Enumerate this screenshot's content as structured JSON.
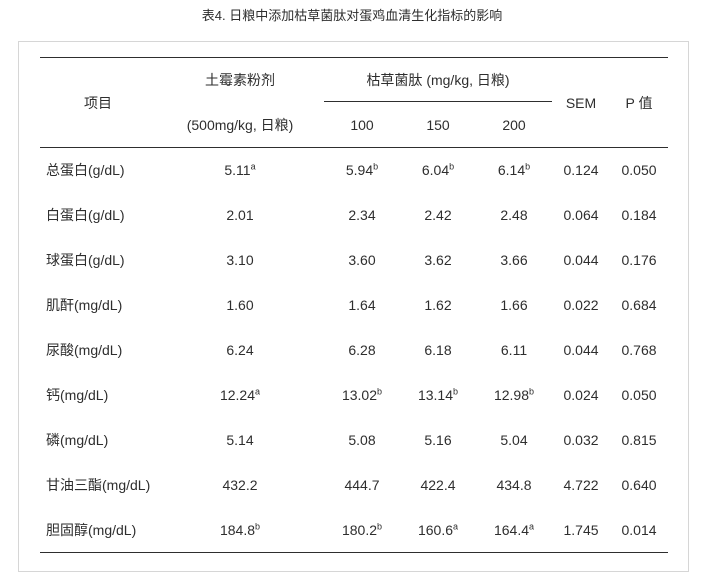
{
  "title": "表4. 日粮中添加枯草菌肽对蛋鸡血清生化指标的影响",
  "colors": {
    "text": "#2e2e2e",
    "rule": "#2e2e2e",
    "panel_border": "#d6d6d6",
    "background": "#ffffff"
  },
  "chart_data": {
    "type": "table",
    "title": "表4. 日粮中添加枯草菌肽对蛋鸡血清生化指标的影响",
    "header": {
      "item_col": "项目",
      "oxytetracycline_line1": "土霉素粉剂",
      "oxytetracycline_line2": "(500mg/kg, 日粮)",
      "bacitracin_group": "枯草菌肽 (mg/kg, 日粮)",
      "dose_cols": [
        "100",
        "150",
        "200"
      ],
      "sem_col": "SEM",
      "p_col": "P 值"
    },
    "rows": [
      {
        "item": "总蛋白(g/dL)",
        "cells": [
          {
            "v": "5.11",
            "s": "a"
          },
          {
            "v": "5.94",
            "s": "b"
          },
          {
            "v": "6.04",
            "s": "b"
          },
          {
            "v": "6.14",
            "s": "b"
          },
          {
            "v": "0.124",
            "s": ""
          },
          {
            "v": "0.050",
            "s": ""
          }
        ]
      },
      {
        "item": "白蛋白(g/dL)",
        "cells": [
          {
            "v": "2.01",
            "s": ""
          },
          {
            "v": "2.34",
            "s": ""
          },
          {
            "v": "2.42",
            "s": ""
          },
          {
            "v": "2.48",
            "s": ""
          },
          {
            "v": "0.064",
            "s": ""
          },
          {
            "v": "0.184",
            "s": ""
          }
        ]
      },
      {
        "item": "球蛋白(g/dL)",
        "cells": [
          {
            "v": "3.10",
            "s": ""
          },
          {
            "v": "3.60",
            "s": ""
          },
          {
            "v": "3.62",
            "s": ""
          },
          {
            "v": "3.66",
            "s": ""
          },
          {
            "v": "0.044",
            "s": ""
          },
          {
            "v": "0.176",
            "s": ""
          }
        ]
      },
      {
        "item": "肌酐(mg/dL)",
        "cells": [
          {
            "v": "1.60",
            "s": ""
          },
          {
            "v": "1.64",
            "s": ""
          },
          {
            "v": "1.62",
            "s": ""
          },
          {
            "v": "1.66",
            "s": ""
          },
          {
            "v": "0.022",
            "s": ""
          },
          {
            "v": "0.684",
            "s": ""
          }
        ]
      },
      {
        "item": "尿酸(mg/dL)",
        "cells": [
          {
            "v": "6.24",
            "s": ""
          },
          {
            "v": "6.28",
            "s": ""
          },
          {
            "v": "6.18",
            "s": ""
          },
          {
            "v": "6.11",
            "s": ""
          },
          {
            "v": "0.044",
            "s": ""
          },
          {
            "v": "0.768",
            "s": ""
          }
        ]
      },
      {
        "item": "钙(mg/dL)",
        "cells": [
          {
            "v": "12.24",
            "s": "a"
          },
          {
            "v": "13.02",
            "s": "b"
          },
          {
            "v": "13.14",
            "s": "b"
          },
          {
            "v": "12.98",
            "s": "b"
          },
          {
            "v": "0.024",
            "s": ""
          },
          {
            "v": "0.050",
            "s": ""
          }
        ]
      },
      {
        "item": "磷(mg/dL)",
        "cells": [
          {
            "v": "5.14",
            "s": ""
          },
          {
            "v": "5.08",
            "s": ""
          },
          {
            "v": "5.16",
            "s": ""
          },
          {
            "v": "5.04",
            "s": ""
          },
          {
            "v": "0.032",
            "s": ""
          },
          {
            "v": "0.815",
            "s": ""
          }
        ]
      },
      {
        "item": "甘油三酯(mg/dL)",
        "cells": [
          {
            "v": "432.2",
            "s": ""
          },
          {
            "v": "444.7",
            "s": ""
          },
          {
            "v": "422.4",
            "s": ""
          },
          {
            "v": "434.8",
            "s": ""
          },
          {
            "v": "4.722",
            "s": ""
          },
          {
            "v": "0.640",
            "s": ""
          }
        ]
      },
      {
        "item": "胆固醇(mg/dL)",
        "cells": [
          {
            "v": "184.8",
            "s": "b"
          },
          {
            "v": "180.2",
            "s": "b"
          },
          {
            "v": "160.6",
            "s": "a"
          },
          {
            "v": "164.4",
            "s": "a"
          },
          {
            "v": "1.745",
            "s": ""
          },
          {
            "v": "0.014",
            "s": ""
          }
        ]
      }
    ]
  }
}
